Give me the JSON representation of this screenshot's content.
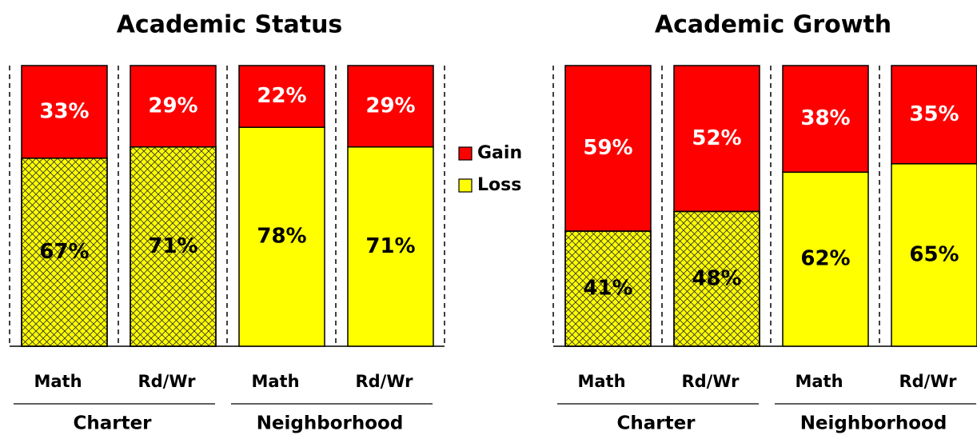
{
  "chart_data": [
    {
      "type": "bar",
      "stacked": true,
      "title": "Academic Status",
      "categories": [
        "Math",
        "Rd/Wr",
        "Math",
        "Rd/Wr"
      ],
      "groups": [
        "Charter",
        "Neighborhood"
      ],
      "hatch": [
        true,
        true,
        false,
        false
      ],
      "series": [
        {
          "name": "Gain",
          "color": "#ff0000",
          "values": [
            33,
            29,
            22,
            29
          ],
          "value_labels": [
            "33%",
            "29%",
            "22%",
            "29%"
          ]
        },
        {
          "name": "Loss",
          "color": "#ffff00",
          "values": [
            67,
            71,
            78,
            71
          ],
          "value_labels": [
            "67%",
            "71%",
            "78%",
            "71%"
          ]
        }
      ]
    },
    {
      "type": "bar",
      "stacked": true,
      "title": "Academic Growth",
      "categories": [
        "Math",
        "Rd/Wr",
        "Math",
        "Rd/Wr"
      ],
      "groups": [
        "Charter",
        "Neighborhood"
      ],
      "hatch": [
        true,
        true,
        false,
        false
      ],
      "series": [
        {
          "name": "Gain",
          "color": "#ff0000",
          "values": [
            59,
            52,
            38,
            35
          ],
          "value_labels": [
            "59%",
            "52%",
            "38%",
            "35%"
          ]
        },
        {
          "name": "Loss",
          "color": "#ffff00",
          "values": [
            41,
            48,
            62,
            65
          ],
          "value_labels": [
            "41%",
            "48%",
            "62%",
            "65%"
          ]
        }
      ]
    }
  ]
}
